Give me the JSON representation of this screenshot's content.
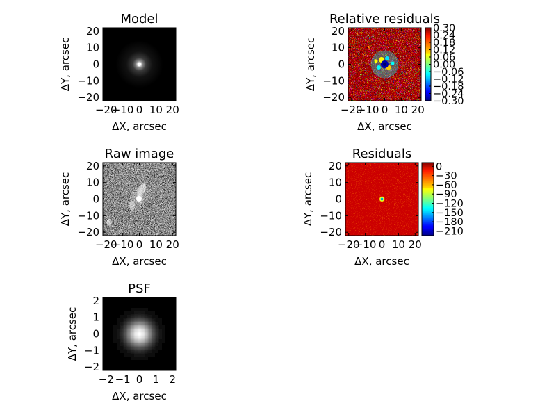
{
  "chart_data": [
    {
      "type": "heatmap",
      "title": "Model",
      "xlabel": "ΔX, arcsec",
      "ylabel": "ΔY, arcsec",
      "xlim": [
        -22,
        22
      ],
      "ylim": [
        -22,
        22
      ],
      "xticks": [
        "−20",
        "−10",
        "0",
        "10",
        "20"
      ],
      "yticks": [
        "20",
        "10",
        "0",
        "−10",
        "−20"
      ],
      "colormap": "gray",
      "content": "compact bright source at the centre, smooth falloff"
    },
    {
      "type": "heatmap",
      "title": "Relative residuals",
      "xlabel": "ΔX, arcsec",
      "ylabel": "ΔY, arcsec",
      "xlim": [
        -22,
        22
      ],
      "ylim": [
        -22,
        22
      ],
      "xticks": [
        "−20",
        "−10",
        "0",
        "10",
        "20"
      ],
      "yticks": [
        "20",
        "10",
        "0",
        "−10",
        "−20"
      ],
      "colormap": "jet",
      "colorbar": {
        "range": [
          -0.3,
          0.3
        ],
        "ticks": [
          "0.30",
          "0.24",
          "0.18",
          "0.12",
          "0.06",
          "0.00",
          "−0.06",
          "−0.12",
          "−0.18",
          "−0.24",
          "−0.30"
        ]
      }
    },
    {
      "type": "heatmap",
      "title": "Raw image",
      "xlabel": "ΔX, arcsec",
      "ylabel": "ΔY, arcsec",
      "xlim": [
        -22,
        22
      ],
      "ylim": [
        -22,
        22
      ],
      "xticks": [
        "−20",
        "−10",
        "0",
        "10",
        "20"
      ],
      "yticks": [
        "20",
        "10",
        "0",
        "−10",
        "−20"
      ],
      "colormap": "gray"
    },
    {
      "type": "heatmap",
      "title": "Residuals",
      "xlabel": "ΔX, arcsec",
      "ylabel": "ΔY, arcsec",
      "xlim": [
        -22,
        22
      ],
      "ylim": [
        -22,
        22
      ],
      "xticks": [
        "−20",
        "−10",
        "0",
        "10",
        "20"
      ],
      "yticks": [
        "20",
        "10",
        "0",
        "−10",
        "−20"
      ],
      "colormap": "jet",
      "colorbar": {
        "range": [
          -225,
          12
        ],
        "ticks": [
          "0",
          "−30",
          "−60",
          "−90",
          "−120",
          "−150",
          "−180",
          "−210"
        ]
      }
    },
    {
      "type": "heatmap",
      "title": "PSF",
      "xlabel": "ΔX, arcsec",
      "ylabel": "ΔY, arcsec",
      "xlim": [
        -2.2,
        2.2
      ],
      "ylim": [
        -2.2,
        2.2
      ],
      "xticks": [
        "−2",
        "−1",
        "0",
        "1",
        "2"
      ],
      "yticks": [
        "2",
        "1",
        "0",
        "−1",
        "−2"
      ],
      "colormap": "gray"
    }
  ]
}
